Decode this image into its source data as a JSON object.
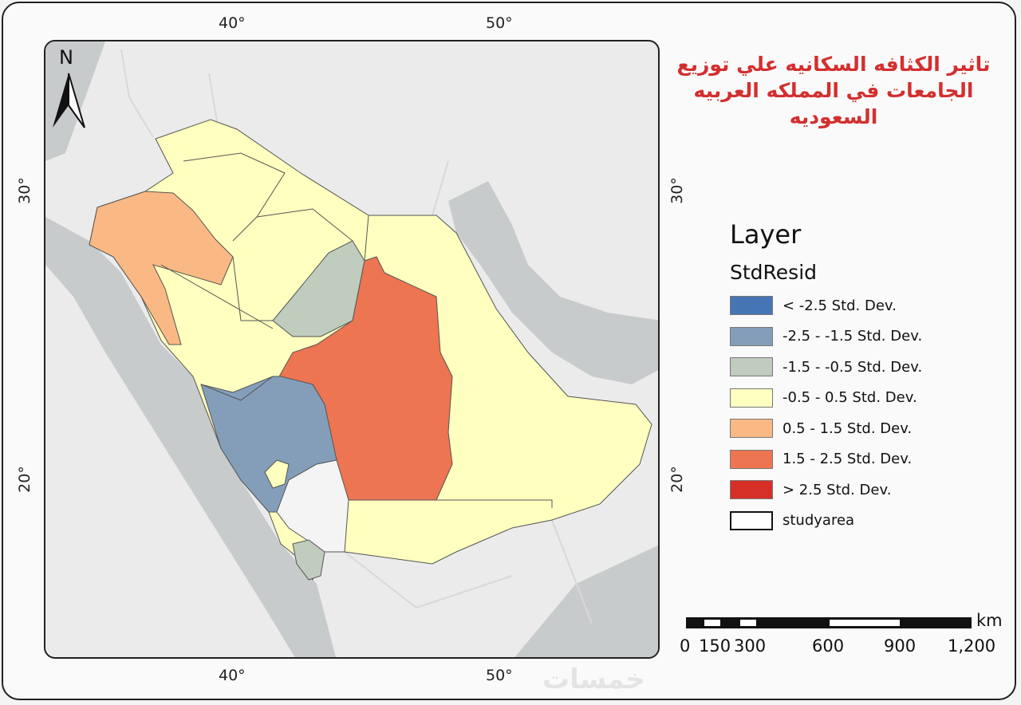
{
  "title": {
    "line1": "تاثير الكثافه السكانيه علي توزيع",
    "line2": "الجامعات في المملكه العربيه السعوديه"
  },
  "grid_labels": {
    "lon": [
      "40°",
      "50°"
    ],
    "lat": [
      "30°",
      "20°"
    ]
  },
  "north_arrow": {
    "label": "N"
  },
  "legend": {
    "title": "Layer",
    "field": "StdResid",
    "items": [
      {
        "label": "< -2.5 Std. Dev.",
        "color": "#4575b4"
      },
      {
        "label": "-2.5 - -1.5 Std. Dev.",
        "color": "#849eba"
      },
      {
        "label": "-1.5 - -0.5 Std. Dev.",
        "color": "#c0ccbe"
      },
      {
        "label": "-0.5 - 0.5 Std. Dev.",
        "color": "#ffffbf"
      },
      {
        "label": "0.5 - 1.5 Std. Dev.",
        "color": "#fab984"
      },
      {
        "label": "1.5 - 2.5 Std. Dev.",
        "color": "#ed7551"
      },
      {
        "label": "> 2.5 Std. Dev.",
        "color": "#d62f27"
      },
      {
        "label": "studyarea",
        "color": "#ffffff"
      }
    ]
  },
  "scale_bar": {
    "unit": "km",
    "labels": [
      "0",
      "150",
      "300",
      "600",
      "900",
      "1,200"
    ]
  },
  "watermark": "خمسات"
}
